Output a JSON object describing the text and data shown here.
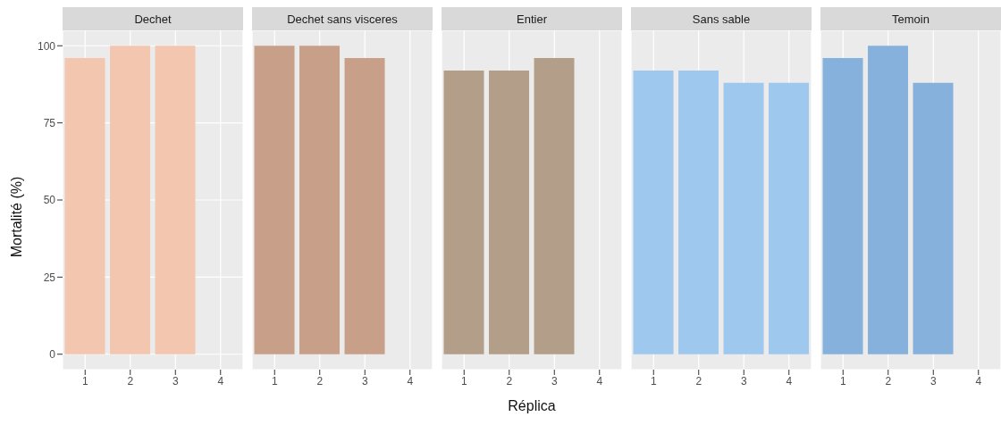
{
  "chart_data": [
    {
      "type": "bar",
      "title": "Dechet",
      "ylabel": "Mortalité (%)",
      "categories": [
        "1",
        "2",
        "3",
        "4"
      ],
      "values": [
        96,
        100,
        100,
        null
      ],
      "color": "#f3c6b0",
      "ylim": [
        -5,
        105
      ],
      "yticks": [
        0,
        25,
        50,
        75,
        100
      ],
      "grid": true
    },
    {
      "type": "bar",
      "title": "Dechet sans visceres",
      "categories": [
        "1",
        "2",
        "3",
        "4"
      ],
      "values": [
        100,
        100,
        96,
        null
      ],
      "color": "#c89f88",
      "ylim": [
        -5,
        105
      ],
      "yticks": [
        0,
        25,
        50,
        75,
        100
      ],
      "grid": true,
      "tick_labels": "x"
    },
    {
      "type": "bar",
      "title": "Entier",
      "xlabel": "Réplica",
      "categories": [
        "1",
        "2",
        "3",
        "4"
      ],
      "values": [
        92,
        92,
        96,
        null
      ],
      "color": "#b39f89",
      "ylim": [
        -5,
        105
      ],
      "yticks": [
        0,
        25,
        50,
        75,
        100
      ],
      "grid": true,
      "tick_labels": "x"
    },
    {
      "type": "bar",
      "title": "Sans sable",
      "categories": [
        "1",
        "2",
        "3",
        "4"
      ],
      "values": [
        92,
        92,
        88,
        88
      ],
      "color": "#9fc8ef",
      "ylim": [
        -5,
        105
      ],
      "yticks": [
        0,
        25,
        50,
        75,
        100
      ],
      "grid": true,
      "tick_labels": "x"
    },
    {
      "type": "bar",
      "title": "Temoin",
      "categories": [
        "1",
        "2",
        "3",
        "4"
      ],
      "values": [
        96,
        100,
        88,
        null
      ],
      "color": "#86b1dc",
      "ylim": [
        -5,
        105
      ],
      "yticks": [
        0,
        25,
        50,
        75,
        100
      ],
      "grid": true,
      "tick_labels": "x"
    }
  ]
}
